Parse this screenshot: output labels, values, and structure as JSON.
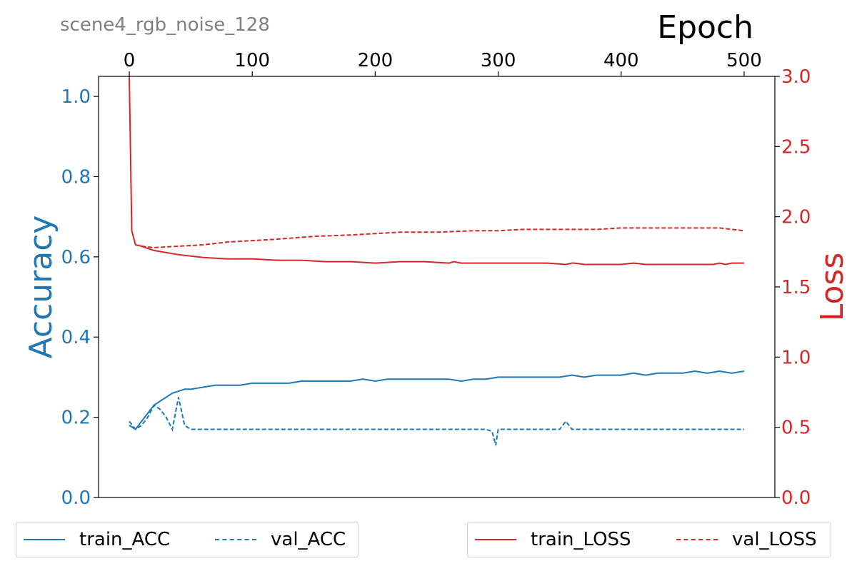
{
  "chart_data": {
    "type": "line",
    "subtitle": "scene4_rgb_noise_128",
    "xlabel": "Epoch",
    "ylabel_left": "Accuracy",
    "ylabel_right": "Loss",
    "xlim": [
      -25,
      525
    ],
    "ylim_left": [
      0.0,
      1.05
    ],
    "ylim_right": [
      0.0,
      3.0
    ],
    "x_ticks": [
      0,
      100,
      200,
      300,
      400,
      500
    ],
    "y_ticks_left": [
      0.0,
      0.2,
      0.4,
      0.6,
      0.8,
      1.0
    ],
    "y_ticks_right": [
      0.0,
      0.5,
      1.0,
      1.5,
      2.0,
      2.5,
      3.0
    ],
    "x_axis_position": "top",
    "grid": false,
    "colors": {
      "accuracy": "#1f77b4",
      "loss": "#d62728"
    },
    "series": [
      {
        "name": "train_ACC",
        "axis": "left",
        "style": "solid",
        "x": [
          0,
          5,
          10,
          15,
          20,
          25,
          30,
          35,
          40,
          45,
          50,
          60,
          70,
          80,
          90,
          100,
          110,
          120,
          130,
          140,
          150,
          160,
          170,
          180,
          190,
          200,
          210,
          220,
          230,
          240,
          250,
          260,
          270,
          280,
          290,
          300,
          310,
          320,
          330,
          340,
          350,
          360,
          370,
          380,
          390,
          400,
          410,
          420,
          430,
          440,
          450,
          460,
          470,
          480,
          490,
          500
        ],
        "y": [
          0.18,
          0.17,
          0.19,
          0.21,
          0.23,
          0.24,
          0.25,
          0.26,
          0.265,
          0.27,
          0.27,
          0.275,
          0.28,
          0.28,
          0.28,
          0.285,
          0.285,
          0.285,
          0.285,
          0.29,
          0.29,
          0.29,
          0.29,
          0.29,
          0.295,
          0.29,
          0.295,
          0.295,
          0.295,
          0.295,
          0.295,
          0.295,
          0.29,
          0.295,
          0.295,
          0.3,
          0.3,
          0.3,
          0.3,
          0.3,
          0.3,
          0.305,
          0.3,
          0.305,
          0.305,
          0.305,
          0.31,
          0.305,
          0.31,
          0.31,
          0.31,
          0.315,
          0.31,
          0.315,
          0.31,
          0.315
        ]
      },
      {
        "name": "val_ACC",
        "axis": "left",
        "style": "dashed",
        "x": [
          0,
          5,
          10,
          15,
          20,
          25,
          30,
          35,
          40,
          45,
          50,
          60,
          100,
          150,
          200,
          250,
          290,
          295,
          298,
          300,
          302,
          305,
          350,
          355,
          360,
          400,
          450,
          500
        ],
        "y": [
          0.19,
          0.17,
          0.18,
          0.2,
          0.23,
          0.22,
          0.2,
          0.17,
          0.25,
          0.18,
          0.17,
          0.17,
          0.17,
          0.17,
          0.17,
          0.17,
          0.17,
          0.165,
          0.13,
          0.17,
          0.17,
          0.17,
          0.17,
          0.19,
          0.17,
          0.17,
          0.17,
          0.17
        ]
      },
      {
        "name": "train_LOSS",
        "axis": "right",
        "style": "solid",
        "x": [
          0,
          2,
          5,
          10,
          20,
          40,
          60,
          80,
          100,
          120,
          140,
          160,
          180,
          200,
          220,
          233,
          240,
          260,
          264,
          270,
          300,
          320,
          328,
          330,
          340,
          355,
          360,
          362,
          370,
          400,
          410,
          420,
          425,
          430,
          440,
          443,
          448,
          450,
          460,
          470,
          475,
          480,
          485,
          490,
          500
        ],
        "y": [
          3.0,
          1.9,
          1.8,
          1.79,
          1.76,
          1.73,
          1.71,
          1.7,
          1.7,
          1.69,
          1.69,
          1.68,
          1.68,
          1.67,
          1.68,
          1.68,
          1.68,
          1.67,
          1.68,
          1.67,
          1.67,
          1.67,
          1.67,
          1.67,
          1.67,
          1.66,
          1.67,
          1.67,
          1.66,
          1.66,
          1.67,
          1.66,
          1.66,
          1.66,
          1.66,
          1.66,
          1.66,
          1.66,
          1.66,
          1.66,
          1.66,
          1.67,
          1.66,
          1.67,
          1.67
        ]
      },
      {
        "name": "val_LOSS",
        "axis": "right",
        "style": "dashed",
        "x": [
          10,
          20,
          40,
          60,
          80,
          100,
          120,
          150,
          180,
          200,
          220,
          250,
          280,
          300,
          320,
          350,
          380,
          400,
          420,
          440,
          460,
          480,
          500
        ],
        "y": [
          1.79,
          1.78,
          1.79,
          1.8,
          1.82,
          1.83,
          1.84,
          1.86,
          1.87,
          1.88,
          1.89,
          1.89,
          1.9,
          1.9,
          1.91,
          1.91,
          1.91,
          1.92,
          1.92,
          1.92,
          1.92,
          1.92,
          1.9
        ]
      }
    ],
    "legend": [
      {
        "group": "left",
        "entries": [
          "train_ACC",
          "val_ACC"
        ],
        "placement": "bottom-left"
      },
      {
        "group": "right",
        "entries": [
          "train_LOSS",
          "val_LOSS"
        ],
        "placement": "bottom-right"
      }
    ]
  }
}
